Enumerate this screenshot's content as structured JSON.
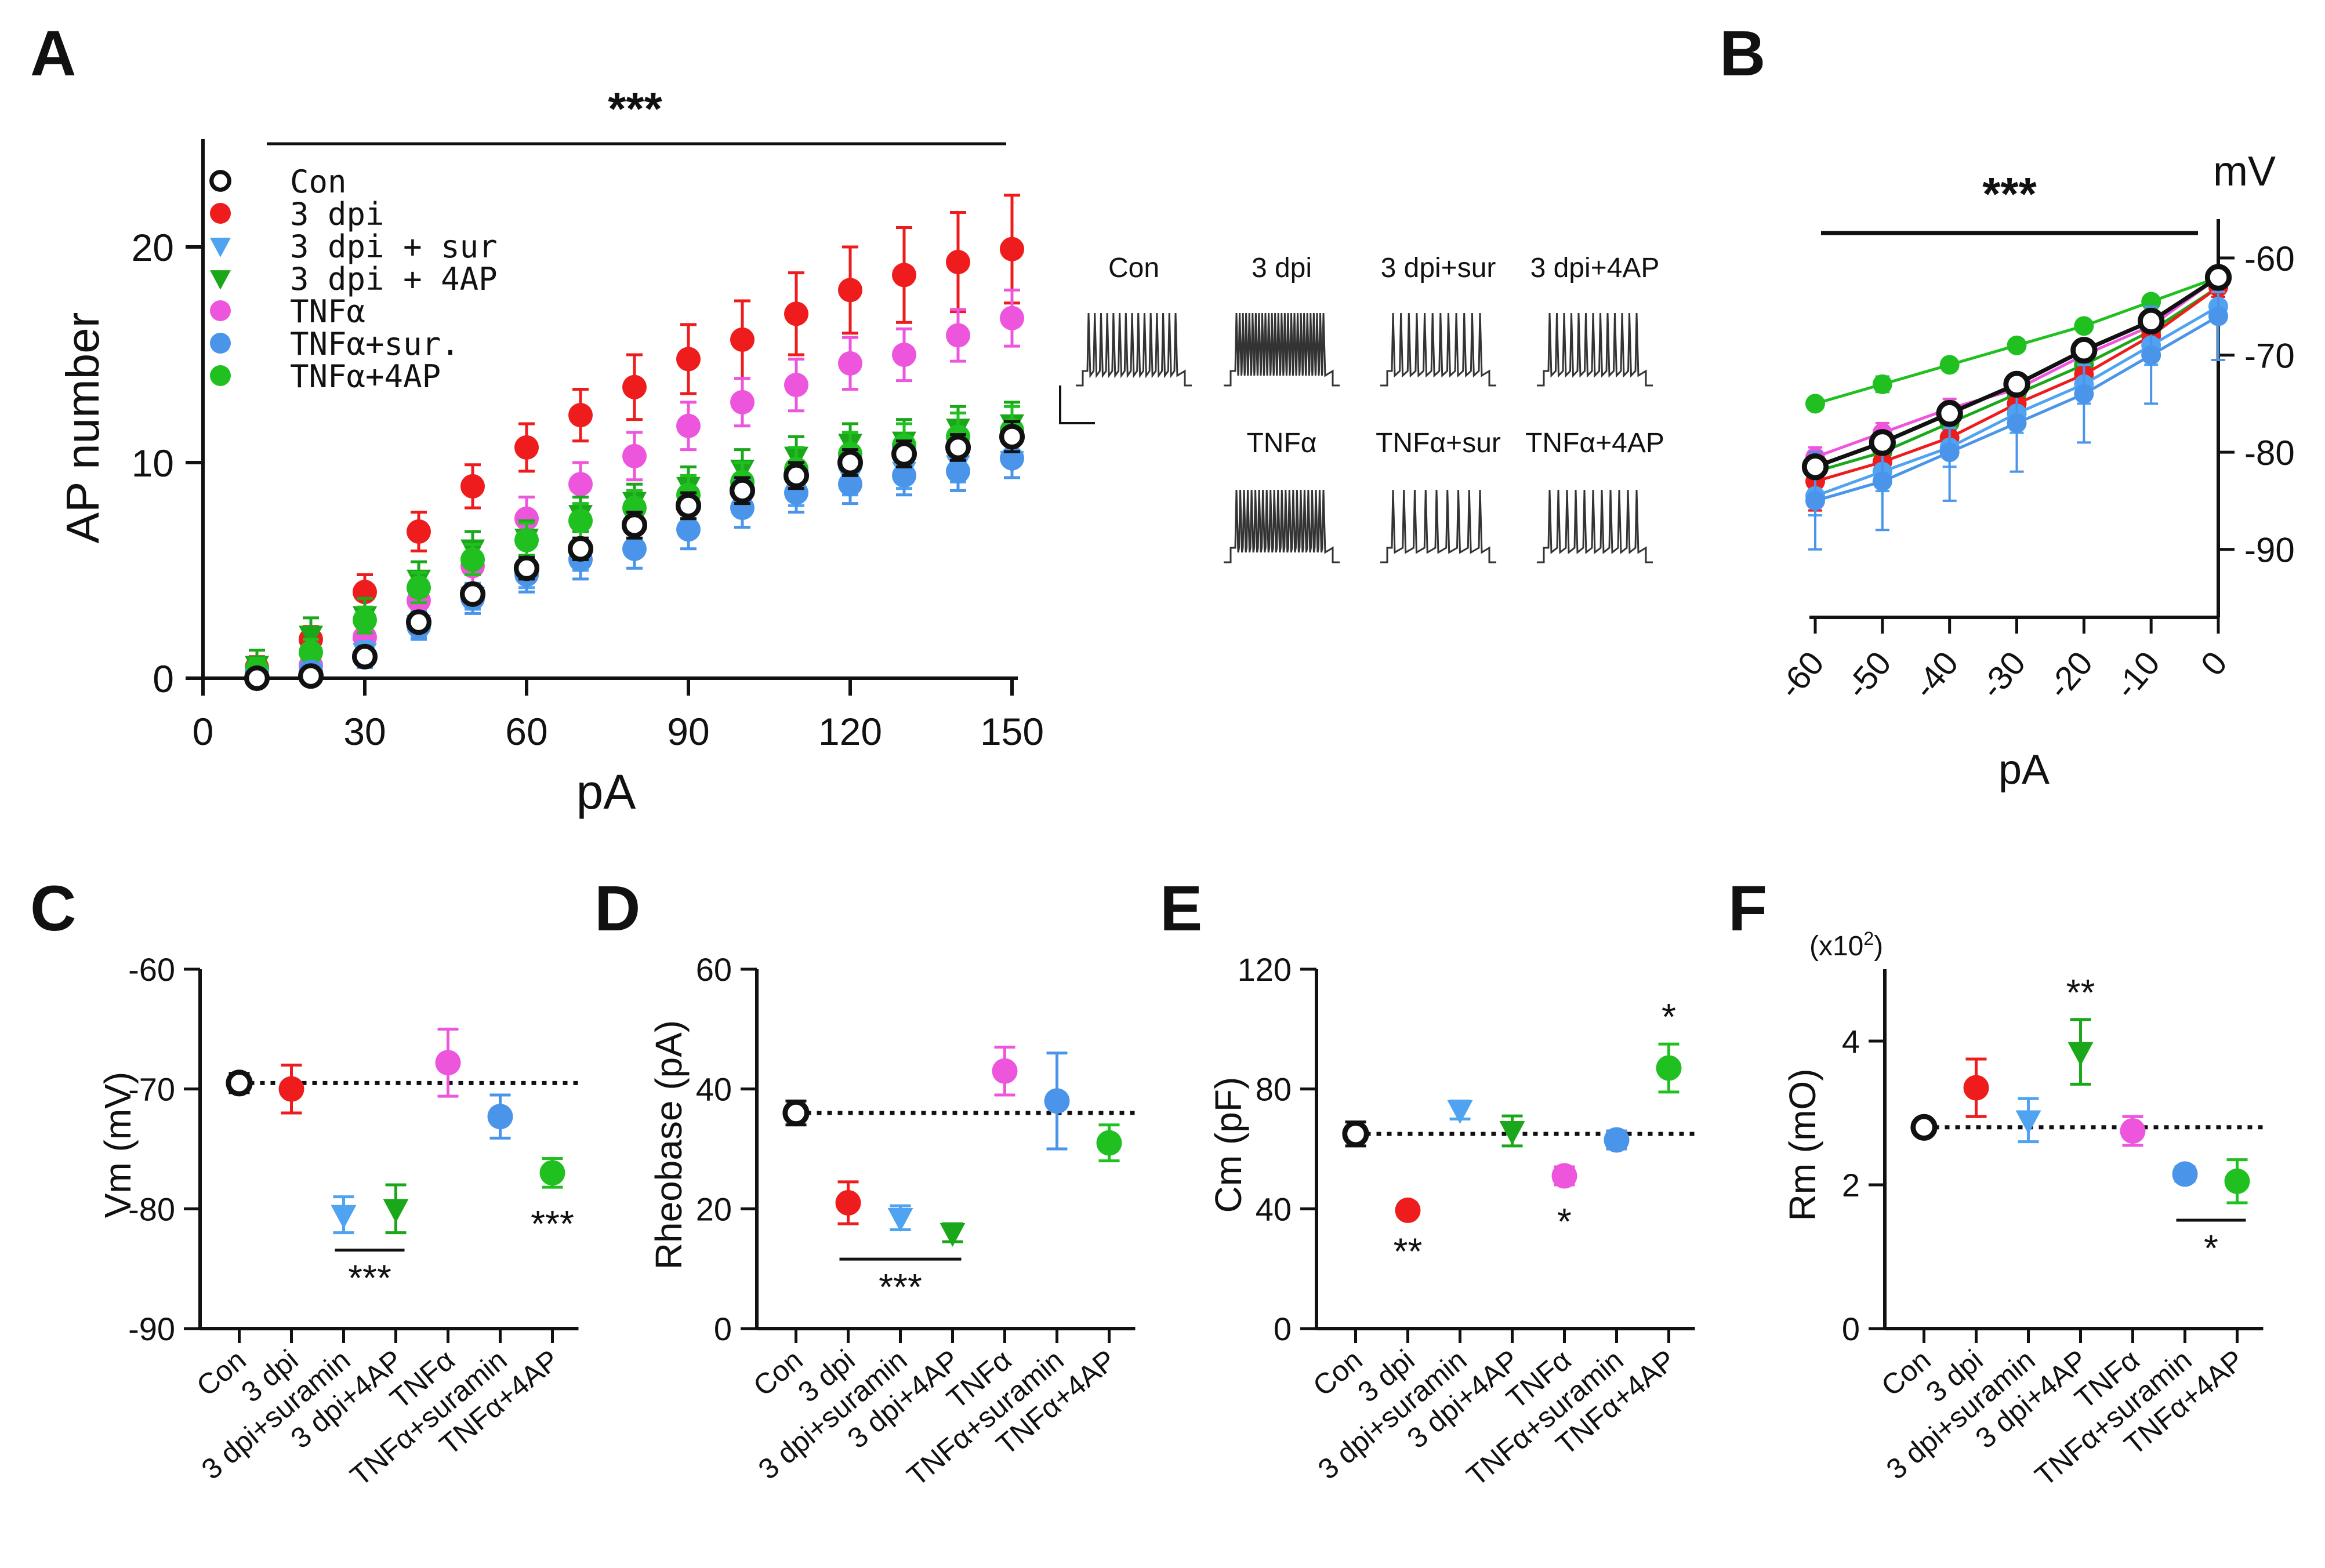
{
  "palette": {
    "Con": "#111111",
    "3dpi": "#ee1c1c",
    "sur": "#4fa3f0",
    "4ap": "#1aa81a",
    "tnf": "#ee55dd",
    "tnfsur": "#4a94ea",
    "tnf4ap": "#20c020"
  },
  "chart_data": [
    {
      "panel": "A",
      "type": "scatter",
      "title": "",
      "xlabel": "pA",
      "ylabel": "AP number",
      "xlim": [
        0,
        150
      ],
      "ylim": [
        0,
        25
      ],
      "xticks": [
        "0",
        "30",
        "60",
        "90",
        "120",
        "150"
      ],
      "yticks": [
        "0",
        "10",
        "20"
      ],
      "x": [
        10,
        20,
        30,
        40,
        50,
        60,
        70,
        80,
        90,
        100,
        110,
        120,
        130,
        140,
        150
      ],
      "significance": "***",
      "series": [
        {
          "key": "3dpi",
          "name": "3 dpi",
          "marker": "circle",
          "values": [
            0.5,
            1.8,
            4.0,
            6.8,
            8.9,
            10.7,
            12.2,
            13.5,
            14.8,
            15.7,
            16.9,
            18.0,
            18.7,
            19.3,
            19.9
          ],
          "err": [
            0.5,
            0.6,
            0.8,
            0.9,
            1.0,
            1.1,
            1.2,
            1.5,
            1.6,
            1.8,
            1.9,
            2.0,
            2.2,
            2.3,
            2.5
          ]
        },
        {
          "key": "tnf",
          "name": "TNFα",
          "marker": "circle",
          "values": [
            0.1,
            0.6,
            1.9,
            3.6,
            5.2,
            7.4,
            9.0,
            10.3,
            11.7,
            12.8,
            13.6,
            14.6,
            15.0,
            15.9,
            16.7
          ],
          "err": [
            0.3,
            0.4,
            0.6,
            0.8,
            0.9,
            1.0,
            1.0,
            1.1,
            1.1,
            1.1,
            1.2,
            1.2,
            1.2,
            1.2,
            1.3
          ]
        },
        {
          "key": "4ap",
          "name": "3 dpi + 4AP",
          "marker": "triangle",
          "values": [
            0.6,
            2.0,
            2.9,
            4.6,
            6.0,
            6.5,
            7.6,
            8.2,
            8.9,
            9.7,
            10.3,
            10.9,
            11.0,
            11.6,
            11.8
          ],
          "err": [
            0.7,
            0.8,
            0.8,
            0.8,
            0.8,
            0.8,
            0.8,
            0.8,
            0.9,
            0.9,
            0.9,
            0.9,
            1.0,
            1.0,
            1.0
          ]
        },
        {
          "key": "tnf4ap",
          "name": "TNFα+4AP",
          "marker": "circle",
          "values": [
            0.4,
            1.2,
            2.7,
            4.2,
            5.5,
            6.4,
            7.3,
            7.9,
            8.5,
            9.1,
            9.7,
            10.4,
            10.8,
            11.2,
            11.5
          ],
          "err": [
            0.5,
            0.6,
            0.6,
            0.7,
            0.7,
            0.8,
            0.8,
            0.8,
            0.9,
            0.9,
            1.0,
            1.0,
            1.0,
            1.1,
            1.1
          ]
        },
        {
          "key": "sur",
          "name": "3 dpi + sur",
          "marker": "triangle",
          "values": [
            0.0,
            0.3,
            1.2,
            2.5,
            3.8,
            4.9,
            5.7,
            6.7,
            7.6,
            8.4,
            8.8,
            9.3,
            9.6,
            9.9,
            10.1
          ],
          "err": [
            0.2,
            0.3,
            0.5,
            0.6,
            0.6,
            0.7,
            0.7,
            0.8,
            0.8,
            0.8,
            0.8,
            0.8,
            0.8,
            0.8,
            0.8
          ]
        },
        {
          "key": "tnfsur",
          "name": "TNFα+sur.",
          "marker": "circle",
          "values": [
            0.0,
            0.3,
            1.0,
            2.4,
            3.7,
            4.8,
            5.5,
            6.0,
            6.9,
            7.9,
            8.6,
            9.0,
            9.4,
            9.6,
            10.2
          ],
          "err": [
            0.2,
            0.3,
            0.5,
            0.6,
            0.7,
            0.8,
            0.9,
            0.9,
            0.9,
            0.9,
            0.9,
            0.9,
            0.9,
            0.9,
            0.9
          ]
        },
        {
          "key": "Con",
          "name": "Con",
          "marker": "open-circle",
          "values": [
            0.0,
            0.1,
            1.0,
            2.6,
            3.9,
            5.1,
            6.0,
            7.1,
            8.0,
            8.7,
            9.4,
            10.0,
            10.4,
            10.7,
            11.2
          ],
          "err": [
            0.2,
            0.2,
            0.3,
            0.4,
            0.4,
            0.5,
            0.5,
            0.6,
            0.6,
            0.6,
            0.6,
            0.6,
            0.6,
            0.6,
            0.7
          ]
        }
      ],
      "legend_order": [
        "Con",
        "3dpi",
        "sur",
        "4ap",
        "tnf",
        "tnfsur",
        "tnf4ap"
      ]
    },
    {
      "panel": "B",
      "type": "line",
      "xlabel": "pA",
      "ylabel": "mV",
      "xlim": [
        -60,
        0
      ],
      "ylim": [
        -97,
        -56
      ],
      "xticks": [
        "-60",
        "-50",
        "-40",
        "-30",
        "-20",
        "-10",
        "0"
      ],
      "yticks": [
        "-60",
        "-70",
        "-80",
        "-90"
      ],
      "x": [
        -60,
        -50,
        -40,
        -30,
        -20,
        -10,
        0
      ],
      "significance": "***",
      "series": [
        {
          "key": "tnf4ap",
          "values": [
            -75.0,
            -73.0,
            -71.0,
            -69.0,
            -67.0,
            -64.5,
            -62.0
          ],
          "err": [
            0.5,
            0.8,
            0.6,
            0.6,
            0.6,
            0.6,
            0.5
          ]
        },
        {
          "key": "tnf",
          "values": [
            -80.5,
            -78.0,
            -75.5,
            -73.5,
            -70.0,
            -67.0,
            -62.0
          ],
          "err": [
            1.0,
            1.0,
            1.0,
            1.0,
            1.0,
            1.0,
            1.0
          ]
        },
        {
          "key": "4ap",
          "values": [
            -82.0,
            -80.0,
            -77.0,
            -74.0,
            -71.0,
            -67.5,
            -63.0
          ],
          "err": [
            1.0,
            1.0,
            1.0,
            1.0,
            1.0,
            1.0,
            1.0
          ]
        },
        {
          "key": "3dpi",
          "values": [
            -83.0,
            -81.0,
            -78.5,
            -75.0,
            -72.0,
            -68.0,
            -63.0
          ],
          "err": [
            3.0,
            2.5,
            2.0,
            2.0,
            1.5,
            1.5,
            1.0
          ]
        },
        {
          "key": "sur",
          "values": [
            -84.5,
            -82.0,
            -79.5,
            -76.0,
            -73.0,
            -69.0,
            -65.0
          ],
          "err": [
            2.0,
            2.0,
            2.0,
            2.0,
            2.0,
            2.0,
            1.5
          ]
        },
        {
          "key": "tnfsur",
          "values": [
            -85.0,
            -83.0,
            -80.0,
            -77.0,
            -74.0,
            -70.0,
            -66.0
          ],
          "err": [
            5.0,
            5.0,
            5.0,
            5.0,
            5.0,
            5.0,
            4.5
          ]
        },
        {
          "key": "Con",
          "values": [
            -81.5,
            -79.0,
            -76.0,
            -73.0,
            -69.5,
            -66.5,
            -62.0
          ],
          "err": [
            0.8,
            0.8,
            0.8,
            0.8,
            0.8,
            0.8,
            0.8
          ]
        }
      ]
    },
    {
      "panel": "C",
      "type": "scatter",
      "ylabel": "Vm  (mV)",
      "ylim": [
        -90,
        -60
      ],
      "yticks": [
        "-60",
        "-70",
        "-80",
        "-90"
      ],
      "baseline": -69.5,
      "categories": [
        "Con",
        "3 dpi",
        "3 dpi+suramin",
        "3 dpi+4AP",
        "TNFα",
        "TNFα+suramin",
        "TNFα+4AP"
      ],
      "values": [
        -69.5,
        -70.0,
        -80.5,
        -80.0,
        -67.8,
        -72.3,
        -77.0
      ],
      "err": [
        0.8,
        2.0,
        1.5,
        2.0,
        2.8,
        1.8,
        1.2
      ],
      "annotations": [
        {
          "text": "***",
          "bracket": [
            2,
            3
          ],
          "pos": "below"
        },
        {
          "text": "***",
          "at": 6,
          "pos": "below"
        }
      ]
    },
    {
      "panel": "D",
      "type": "scatter",
      "ylabel": "Rheobase (pA)",
      "ylim": [
        0,
        60
      ],
      "yticks": [
        "0",
        "20",
        "40",
        "60"
      ],
      "baseline": 36,
      "categories": [
        "Con",
        "3 dpi",
        "3 dpi+suramin",
        "3 dpi+4AP",
        "TNFα",
        "TNFα+suramin",
        "TNFα+4AP"
      ],
      "values": [
        36,
        21,
        18.5,
        16,
        43,
        38,
        31
      ],
      "err": [
        2,
        3.5,
        2,
        1.5,
        4,
        8,
        3
      ],
      "annotations": [
        {
          "text": "***",
          "bracket": [
            1,
            3
          ],
          "pos": "below"
        }
      ]
    },
    {
      "panel": "E",
      "type": "scatter",
      "ylabel": "Cm  (pF)",
      "ylim": [
        0,
        120
      ],
      "yticks": [
        "0",
        "40",
        "80",
        "120"
      ],
      "baseline": 65,
      "categories": [
        "Con",
        "3 dpi",
        "3 dpi+suramin",
        "3 dpi+4AP",
        "TNFα",
        "TNFα+suramin",
        "TNFα+4AP"
      ],
      "values": [
        65,
        39.5,
        73,
        66,
        51,
        63,
        87
      ],
      "err": [
        4,
        1.5,
        3,
        5,
        3,
        3,
        8
      ],
      "annotations": [
        {
          "text": "**",
          "at": 1,
          "pos": "below"
        },
        {
          "text": "*",
          "at": 4,
          "pos": "below"
        },
        {
          "text": "*",
          "at": 6,
          "pos": "above"
        }
      ]
    },
    {
      "panel": "F",
      "type": "scatter",
      "ylabel": "Rm  (mO)",
      "unit_label": "(x10",
      "unit_sup": "2",
      "unit_close": ")",
      "ylim": [
        0,
        5
      ],
      "yticks": [
        "0",
        "2",
        "4"
      ],
      "baseline": 2.8,
      "categories": [
        "Con",
        "3 dpi",
        "3 dpi+suramin",
        "3 dpi+4AP",
        "TNFα",
        "TNFα+suramin",
        "TNFα+4AP"
      ],
      "values": [
        2.8,
        3.35,
        2.9,
        3.85,
        2.75,
        2.15,
        2.05
      ],
      "err": [
        0.05,
        0.4,
        0.3,
        0.45,
        0.2,
        0.1,
        0.3
      ],
      "annotations": [
        {
          "text": "**",
          "at": 3,
          "pos": "above"
        },
        {
          "text": "*",
          "bracket": [
            5,
            6
          ],
          "pos": "below"
        }
      ]
    }
  ],
  "traces": {
    "row1": [
      "Con",
      "3 dpi",
      "3 dpi+sur",
      "3 dpi+4AP"
    ],
    "row2": [
      "TNFα",
      "TNFα+sur",
      "TNFα+4AP"
    ]
  },
  "panel_letters": [
    "A",
    "B",
    "C",
    "D",
    "E",
    "F"
  ]
}
